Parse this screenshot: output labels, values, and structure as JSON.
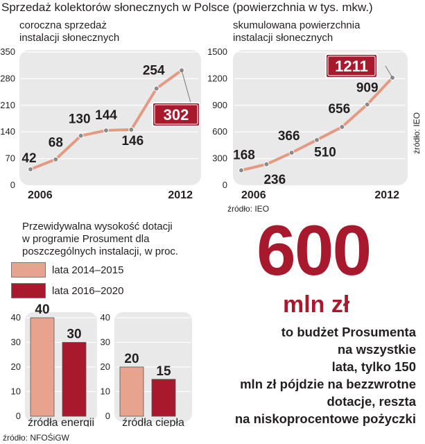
{
  "title": "Sprzedaż kolektorów słonecznych w Polsce (powierzchnia w tys. mkw.)",
  "colors": {
    "accent": "#a8192e",
    "light": "#e8a38e",
    "line": "#e49a82",
    "panel": "#e9e9e9"
  },
  "chart_data": [
    {
      "type": "line",
      "title": "coroczna sprzedaż instalacji słonecznych",
      "subtitle_lines": [
        "coroczna sprzedaż",
        "instalacji słonecznych"
      ],
      "x": [
        2006,
        2007,
        2008,
        2009,
        2010,
        2011,
        2012
      ],
      "x_tick_labels": [
        "2006",
        "2012"
      ],
      "values": [
        42,
        68,
        130,
        144,
        146,
        254,
        302
      ],
      "ylim": [
        0,
        350
      ],
      "yticks": [
        0,
        70,
        140,
        210,
        280,
        350
      ],
      "highlight": {
        "index": 6,
        "label": "302"
      }
    },
    {
      "type": "line",
      "title": "skumulowana powierzchnia instalacji słonecznych",
      "subtitle_lines": [
        "skumulowana powierzchnia",
        "instalacji słonecznych"
      ],
      "x": [
        2006,
        2007,
        2008,
        2009,
        2010,
        2011,
        2012
      ],
      "x_tick_labels": [
        "2006",
        "2012"
      ],
      "values": [
        168,
        236,
        366,
        510,
        656,
        909,
        1211
      ],
      "ylim": [
        0,
        1500
      ],
      "yticks": [
        0,
        300,
        600,
        900,
        1200,
        1500
      ],
      "highlight": {
        "index": 6,
        "label": "1211"
      },
      "source": "źródło: IEO",
      "side_source": "źródło: IEO"
    },
    {
      "type": "bar",
      "title": "Przewidywalna wysokość dotacji w programie Prosument dla poszczególnych instalacji, w proc.",
      "title_lines": [
        "Przewidywalna wysokość dotacji",
        "w programie Prosument dla",
        "poszczególnych instalacji, w proc."
      ],
      "legend": [
        "lata 2014–2015",
        "lata 2016–2020"
      ],
      "categories": [
        "źródła energii",
        "źródła ciepła"
      ],
      "series": [
        {
          "name": "lata 2014–2015",
          "values": [
            40,
            20
          ]
        },
        {
          "name": "lata 2016–2020",
          "values": [
            30,
            15
          ]
        }
      ],
      "ylim": [
        0,
        40
      ],
      "yticks": [
        0,
        10,
        20,
        30,
        40
      ],
      "source": "źródło: NFOŚiGW"
    }
  ],
  "budget": {
    "amount": "600",
    "unit": "mln zł",
    "lines": [
      "to budżet Prosumenta",
      "na wszystkie",
      "lata, tylko 150",
      "mln zł pójdzie na bezzwrotne",
      "dotacje, reszta",
      "na niskoprocentowe pożyczki"
    ]
  }
}
